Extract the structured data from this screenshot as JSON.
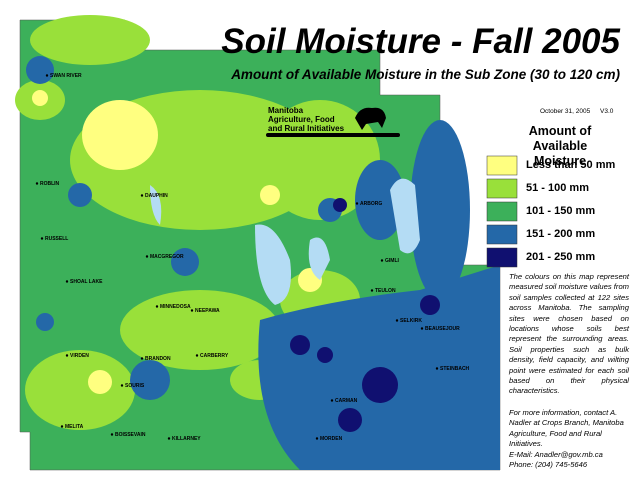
{
  "title": "Soil Moisture - Fall 2005",
  "subtitle": "Amount of Available Moisture in the Sub Zone (30 to 120 cm)",
  "organization": [
    "Manitoba",
    "Agriculture, Food",
    "and Rural Initiatives"
  ],
  "date": "October 31, 2005",
  "version": "V3.0",
  "legend": {
    "title": [
      "Amount of",
      "Available Moisture"
    ],
    "items": [
      {
        "label": "Less than 50 mm",
        "color": "#ffff80"
      },
      {
        "label": "51 - 100 mm",
        "color": "#99e03a"
      },
      {
        "label": "101 - 150 mm",
        "color": "#3cb05a"
      },
      {
        "label": "151 - 200 mm",
        "color": "#2468a8"
      },
      {
        "label": "201 - 250 mm",
        "color": "#101070"
      }
    ]
  },
  "description": "The colours on this map represent measured soil moisture values from soil samples collected at 122 sites across Manitoba. The sampling sites were chosen based on locations whose soils best represent the surrounding areas. Soil properties such as bulk density, field capacity, and wilting point were estimated for each soil based on their physical characteristics.",
  "contact": [
    "For more information, contact A. Nadler at Crops Branch, Manitoba Agriculture, Food and Rural Initiatives.",
    "E-Mail: Anadler@gov.mb.ca",
    "Phone: (204) 745-5646"
  ],
  "towns": [
    "SWAN RIVER",
    "ROBLIN",
    "DAUPHIN",
    "RUSSELL",
    "MACGREGOR",
    "SHOAL LAKE",
    "MINNEDOSA",
    "NEEPAWA",
    "VIRDEN",
    "BRANDON",
    "CARBERRY",
    "SOURIS",
    "MELITA",
    "BOISSEVAIN",
    "KILLARNEY",
    "ARBORG",
    "GIMLI",
    "TEULON",
    "SELKIRK",
    "BEAUSEJOUR",
    "CARMAN",
    "STEINBACH",
    "MORDEN"
  ]
}
